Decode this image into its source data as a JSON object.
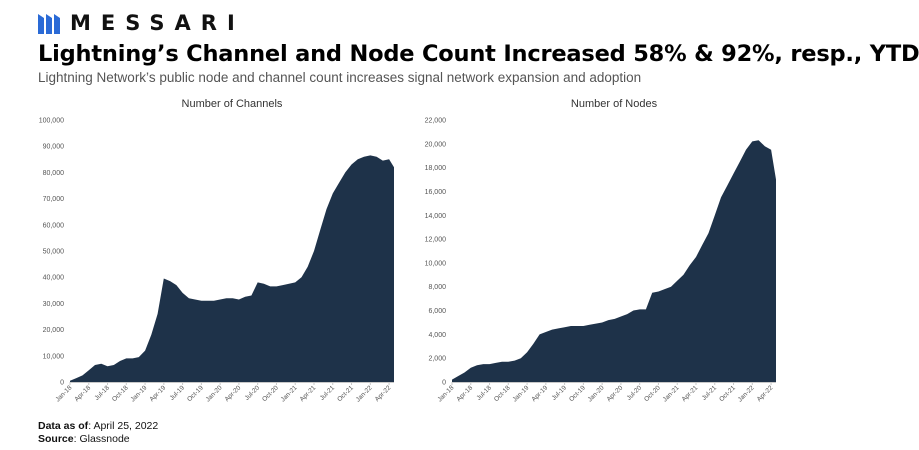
{
  "header": {
    "brand": "MESSARI",
    "title": "Lightning’s Channel and Node Count Increased 58% & 92%, resp., YTD",
    "subtitle": "Lightning Network’s public node and channel count increases signal network expansion and adoption"
  },
  "footer": {
    "data_label": "Data as of",
    "data_value": ": April 25, 2022",
    "source_label": "Source",
    "source_value": ": Glassnode"
  },
  "colors": {
    "fill": "#1e3249",
    "axis": "#c8c8c8",
    "text": "#555555"
  },
  "chart_data": [
    {
      "type": "area",
      "title": "Number of Channels",
      "x_ticks": [
        "Jan-18",
        "Apr-18",
        "Jul-18",
        "Oct-18",
        "Jan-19",
        "Apr-19",
        "Jul-19",
        "Oct-19",
        "Jan-20",
        "Apr-20",
        "Jul-20",
        "Oct-20",
        "Jan-21",
        "Apr-21",
        "Jul-21",
        "Oct-21",
        "Jan-22",
        "Apr-22"
      ],
      "y_ticks": [
        "0",
        "10,000",
        "20,000",
        "30,000",
        "40,000",
        "50,000",
        "60,000",
        "70,000",
        "80,000",
        "90,000",
        "100,000"
      ],
      "ylim": [
        0,
        100000
      ],
      "x": [
        "2018-01",
        "2018-02",
        "2018-03",
        "2018-04",
        "2018-05",
        "2018-06",
        "2018-07",
        "2018-08",
        "2018-09",
        "2018-10",
        "2018-11",
        "2018-12",
        "2019-01",
        "2019-02",
        "2019-03",
        "2019-04",
        "2019-05",
        "2019-06",
        "2019-07",
        "2019-08",
        "2019-09",
        "2019-10",
        "2019-11",
        "2019-12",
        "2020-01",
        "2020-02",
        "2020-03",
        "2020-04",
        "2020-05",
        "2020-06",
        "2020-07",
        "2020-08",
        "2020-09",
        "2020-10",
        "2020-11",
        "2020-12",
        "2021-01",
        "2021-02",
        "2021-03",
        "2021-04",
        "2021-05",
        "2021-06",
        "2021-07",
        "2021-08",
        "2021-09",
        "2021-10",
        "2021-11",
        "2021-12",
        "2022-01",
        "2022-02",
        "2022-03",
        "2022-04",
        "2022-04-25"
      ],
      "values": [
        500,
        1500,
        2500,
        4500,
        6500,
        7000,
        6000,
        6500,
        8000,
        9000,
        9000,
        9500,
        12000,
        18000,
        26000,
        39500,
        38500,
        37000,
        34000,
        32000,
        31500,
        31000,
        31000,
        31000,
        31500,
        32000,
        32000,
        31500,
        32500,
        33000,
        38000,
        37500,
        36500,
        36500,
        37000,
        37500,
        38000,
        40000,
        44000,
        50000,
        58000,
        66000,
        72000,
        76000,
        80000,
        83000,
        85000,
        86000,
        86500,
        86000,
        84500,
        85000,
        82000
      ]
    },
    {
      "type": "area",
      "title": "Number of Nodes",
      "x_ticks": [
        "Jan-18",
        "Apr-18",
        "Jul-18",
        "Oct-18",
        "Jan-19",
        "Apr-19",
        "Jul-19",
        "Oct-19",
        "Jan-20",
        "Apr-20",
        "Jul-20",
        "Oct-20",
        "Jan-21",
        "Apr-21",
        "Jul-21",
        "Oct-21",
        "Jan-22",
        "Apr-22"
      ],
      "y_ticks": [
        "0",
        "2,000",
        "4,000",
        "6,000",
        "8,000",
        "10,000",
        "12,000",
        "14,000",
        "16,000",
        "18,000",
        "20,000",
        "22,000"
      ],
      "ylim": [
        0,
        22000
      ],
      "x": [
        "2018-01",
        "2018-02",
        "2018-03",
        "2018-04",
        "2018-05",
        "2018-06",
        "2018-07",
        "2018-08",
        "2018-09",
        "2018-10",
        "2018-11",
        "2018-12",
        "2019-01",
        "2019-02",
        "2019-03",
        "2019-04",
        "2019-05",
        "2019-06",
        "2019-07",
        "2019-08",
        "2019-09",
        "2019-10",
        "2019-11",
        "2019-12",
        "2020-01",
        "2020-02",
        "2020-03",
        "2020-04",
        "2020-05",
        "2020-06",
        "2020-07",
        "2020-08",
        "2020-09",
        "2020-10",
        "2020-11",
        "2020-12",
        "2021-01",
        "2021-02",
        "2021-03",
        "2021-04",
        "2021-05",
        "2021-06",
        "2021-07",
        "2021-08",
        "2021-09",
        "2021-10",
        "2021-11",
        "2021-12",
        "2022-01",
        "2022-02",
        "2022-03",
        "2022-04",
        "2022-04-25"
      ],
      "values": [
        200,
        500,
        800,
        1200,
        1400,
        1500,
        1500,
        1600,
        1700,
        1700,
        1800,
        2000,
        2500,
        3200,
        4000,
        4200,
        4400,
        4500,
        4600,
        4700,
        4700,
        4700,
        4800,
        4900,
        5000,
        5200,
        5300,
        5500,
        5700,
        6000,
        6100,
        6100,
        7500,
        7600,
        7800,
        8000,
        8500,
        9000,
        9800,
        10500,
        11500,
        12500,
        14000,
        15500,
        16500,
        17500,
        18500,
        19500,
        20200,
        20300,
        19800,
        19500,
        17000
      ]
    }
  ]
}
